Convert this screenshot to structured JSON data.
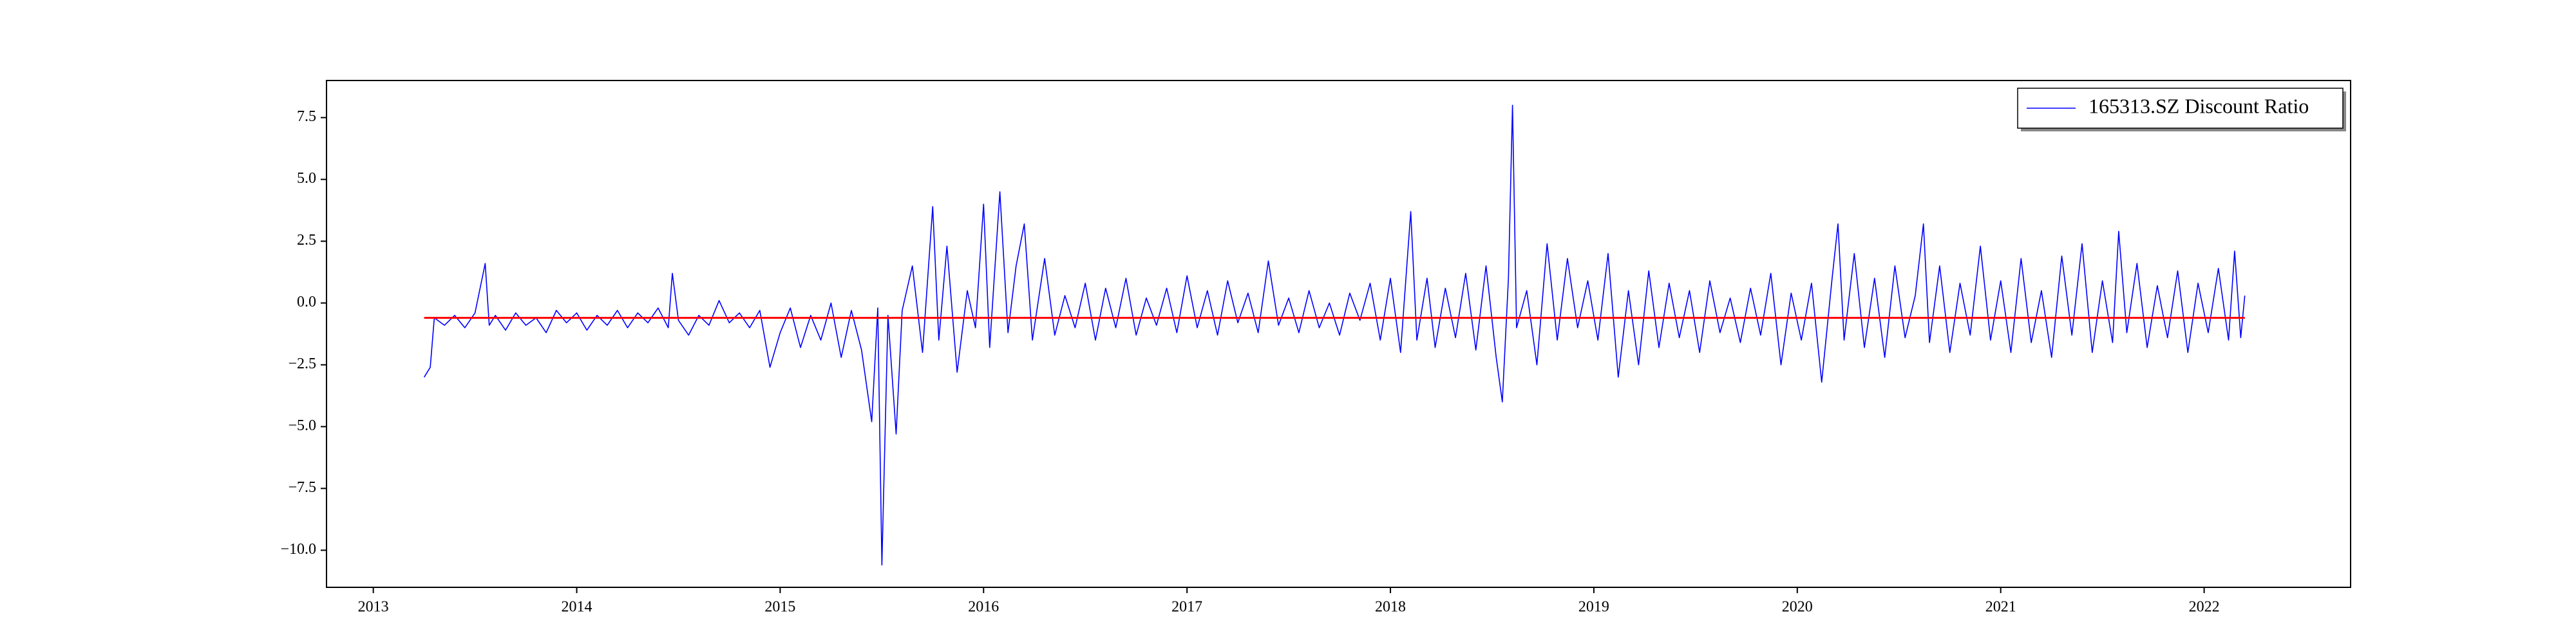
{
  "chart_data": {
    "type": "line",
    "x": [
      2013.25,
      2013.28,
      2013.3,
      2013.35,
      2013.4,
      2013.45,
      2013.5,
      2013.55,
      2013.57,
      2013.6,
      2013.65,
      2013.7,
      2013.75,
      2013.8,
      2013.85,
      2013.9,
      2013.95,
      2014.0,
      2014.05,
      2014.1,
      2014.15,
      2014.2,
      2014.25,
      2014.3,
      2014.35,
      2014.4,
      2014.45,
      2014.47,
      2014.5,
      2014.55,
      2014.6,
      2014.65,
      2014.7,
      2014.75,
      2014.8,
      2014.85,
      2014.9,
      2014.95,
      2015.0,
      2015.05,
      2015.1,
      2015.15,
      2015.2,
      2015.25,
      2015.3,
      2015.35,
      2015.4,
      2015.45,
      2015.48,
      2015.5,
      2015.53,
      2015.57,
      2015.6,
      2015.65,
      2015.7,
      2015.75,
      2015.78,
      2015.82,
      2015.87,
      2015.92,
      2015.96,
      2016.0,
      2016.03,
      2016.08,
      2016.12,
      2016.16,
      2016.2,
      2016.24,
      2016.3,
      2016.35,
      2016.4,
      2016.45,
      2016.5,
      2016.55,
      2016.6,
      2016.65,
      2016.7,
      2016.75,
      2016.8,
      2016.85,
      2016.9,
      2016.95,
      2017.0,
      2017.05,
      2017.1,
      2017.15,
      2017.2,
      2017.25,
      2017.3,
      2017.35,
      2017.4,
      2017.45,
      2017.5,
      2017.55,
      2017.6,
      2017.65,
      2017.7,
      2017.75,
      2017.8,
      2017.85,
      2017.9,
      2017.95,
      2018.0,
      2018.05,
      2018.1,
      2018.13,
      2018.18,
      2018.22,
      2018.27,
      2018.32,
      2018.37,
      2018.42,
      2018.47,
      2018.52,
      2018.55,
      2018.58,
      2018.6,
      2018.62,
      2018.67,
      2018.72,
      2018.77,
      2018.82,
      2018.87,
      2018.92,
      2018.97,
      2019.02,
      2019.07,
      2019.12,
      2019.17,
      2019.22,
      2019.27,
      2019.32,
      2019.37,
      2019.42,
      2019.47,
      2019.52,
      2019.57,
      2019.62,
      2019.67,
      2019.72,
      2019.77,
      2019.82,
      2019.87,
      2019.92,
      2019.97,
      2020.02,
      2020.07,
      2020.12,
      2020.17,
      2020.2,
      2020.23,
      2020.28,
      2020.33,
      2020.38,
      2020.43,
      2020.48,
      2020.53,
      2020.58,
      2020.62,
      2020.65,
      2020.7,
      2020.75,
      2020.8,
      2020.85,
      2020.9,
      2020.95,
      2021.0,
      2021.05,
      2021.1,
      2021.15,
      2021.2,
      2021.25,
      2021.3,
      2021.35,
      2021.4,
      2021.45,
      2021.5,
      2021.55,
      2021.58,
      2021.62,
      2021.67,
      2021.72,
      2021.77,
      2021.82,
      2021.87,
      2021.92,
      2021.97,
      2022.02,
      2022.07,
      2022.12,
      2022.15,
      2022.18,
      2022.2
    ],
    "series": [
      {
        "name": "165313.SZ Discount Ratio",
        "color": "#0000ff",
        "values": [
          -3.0,
          -2.6,
          -0.6,
          -0.9,
          -0.5,
          -1.0,
          -0.4,
          1.6,
          -0.9,
          -0.5,
          -1.1,
          -0.4,
          -0.9,
          -0.6,
          -1.2,
          -0.3,
          -0.8,
          -0.4,
          -1.1,
          -0.5,
          -0.9,
          -0.3,
          -1.0,
          -0.4,
          -0.8,
          -0.2,
          -1.0,
          1.2,
          -0.7,
          -1.3,
          -0.5,
          -0.9,
          0.1,
          -0.8,
          -0.4,
          -1.0,
          -0.3,
          -2.6,
          -1.2,
          -0.2,
          -1.8,
          -0.5,
          -1.5,
          0.0,
          -2.2,
          -0.3,
          -1.9,
          -4.8,
          -0.2,
          -10.6,
          -0.5,
          -5.3,
          -0.3,
          1.5,
          -2.0,
          3.9,
          -1.5,
          2.3,
          -2.8,
          0.5,
          -1.0,
          4.0,
          -1.8,
          4.5,
          -1.2,
          1.5,
          3.2,
          -1.5,
          1.8,
          -1.3,
          0.3,
          -1.0,
          0.8,
          -1.5,
          0.6,
          -1.0,
          1.0,
          -1.3,
          0.2,
          -0.9,
          0.6,
          -1.2,
          1.1,
          -1.0,
          0.5,
          -1.3,
          0.9,
          -0.8,
          0.4,
          -1.2,
          1.7,
          -0.9,
          0.2,
          -1.2,
          0.5,
          -1.0,
          0.0,
          -1.3,
          0.4,
          -0.7,
          0.8,
          -1.5,
          1.0,
          -2.0,
          3.7,
          -1.5,
          1.0,
          -1.8,
          0.6,
          -1.4,
          1.2,
          -1.9,
          1.5,
          -2.2,
          -4.0,
          1.0,
          8.0,
          -1.0,
          0.5,
          -2.5,
          2.4,
          -1.5,
          1.8,
          -1.0,
          0.9,
          -1.5,
          2.0,
          -3.0,
          0.5,
          -2.5,
          1.3,
          -1.8,
          0.8,
          -1.4,
          0.5,
          -2.0,
          0.9,
          -1.2,
          0.2,
          -1.6,
          0.6,
          -1.3,
          1.2,
          -2.5,
          0.4,
          -1.5,
          0.8,
          -3.2,
          0.9,
          3.2,
          -1.5,
          2.0,
          -1.8,
          1.0,
          -2.2,
          1.5,
          -1.4,
          0.3,
          3.2,
          -1.6,
          1.5,
          -2.0,
          0.8,
          -1.3,
          2.3,
          -1.5,
          0.9,
          -2.0,
          1.8,
          -1.6,
          0.5,
          -2.2,
          1.9,
          -1.3,
          2.4,
          -2.0,
          0.9,
          -1.6,
          2.9,
          -1.2,
          1.6,
          -1.8,
          0.7,
          -1.4,
          1.3,
          -2.0,
          0.8,
          -1.2,
          1.4,
          -1.5,
          2.1,
          -1.4,
          0.3
        ]
      }
    ],
    "mean_line": {
      "value": -0.6,
      "color": "#ff0000"
    },
    "xlim": [
      2012.77,
      2022.72
    ],
    "ylim": [
      -11.5,
      9.0
    ],
    "xticks": [
      2013,
      2014,
      2015,
      2016,
      2017,
      2018,
      2019,
      2020,
      2021,
      2022
    ],
    "yticks": [
      {
        "value": -10,
        "label": "−10.0"
      },
      {
        "value": -7.5,
        "label": "−7.5"
      },
      {
        "value": -5,
        "label": "−5.0"
      },
      {
        "value": -2.5,
        "label": "−2.5"
      },
      {
        "value": 0,
        "label": "0.0"
      },
      2.5,
      {
        "value": 5,
        "label": "5.0"
      },
      7.5
    ],
    "legend": "upper right"
  }
}
